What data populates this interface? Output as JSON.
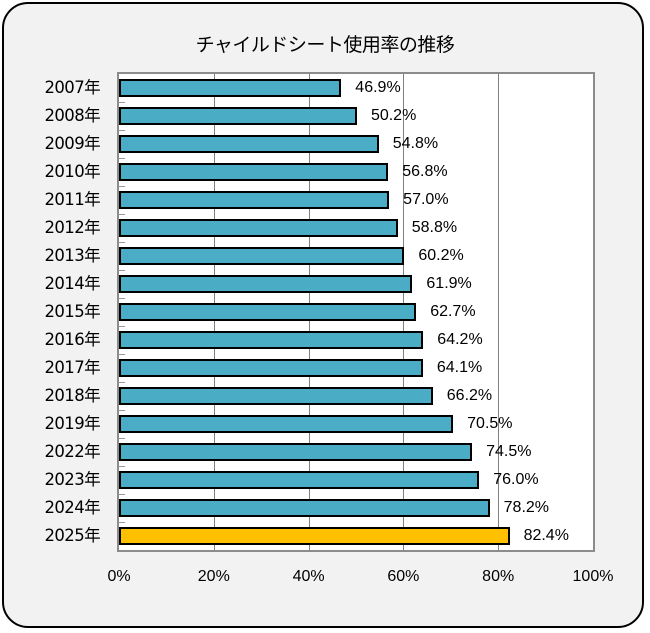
{
  "chart_data": {
    "type": "bar",
    "orientation": "horizontal",
    "title": "チャイルドシート使用率の推移",
    "xlabel": "",
    "ylabel": "",
    "xlim": [
      0,
      100
    ],
    "x_ticks": [
      "0%",
      "20%",
      "40%",
      "60%",
      "80%",
      "100%"
    ],
    "grid": true,
    "legend": null,
    "categories": [
      "2007年",
      "2008年",
      "2009年",
      "2010年",
      "2011年",
      "2012年",
      "2013年",
      "2014年",
      "2015年",
      "2016年",
      "2017年",
      "2018年",
      "2019年",
      "2022年",
      "2023年",
      "2024年",
      "2025年"
    ],
    "values": [
      46.9,
      50.2,
      54.8,
      56.8,
      57.0,
      58.8,
      60.2,
      61.9,
      62.7,
      64.2,
      64.1,
      66.2,
      70.5,
      74.5,
      76.0,
      78.2,
      82.4
    ],
    "value_labels": [
      "46.9%",
      "50.2%",
      "54.8%",
      "56.8%",
      "57.0%",
      "58.8%",
      "60.2%",
      "61.9%",
      "62.7%",
      "64.2%",
      "64.1%",
      "66.2%",
      "70.5%",
      "74.5%",
      "76.0%",
      "78.2%",
      "82.4%"
    ],
    "colors": {
      "default_bar": "#4bacc6",
      "highlight_bar": "#ffc000",
      "highlight_category": "2025年",
      "bar_border": "#000000",
      "background": "#f2f2f2",
      "plot_background": "#ffffff"
    }
  }
}
